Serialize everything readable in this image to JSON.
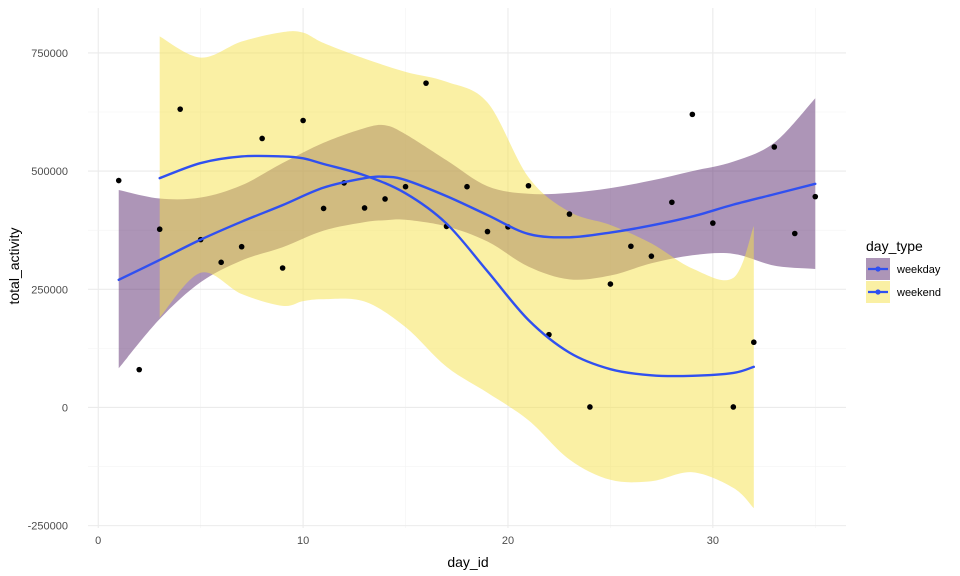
{
  "chart_data": {
    "type": "scatter",
    "xlabel": "day_id",
    "ylabel": "total_activity",
    "xlim": [
      -0.5,
      36.5
    ],
    "ylim": [
      -255000,
      845000
    ],
    "x_ticks": [
      0,
      10,
      20,
      30
    ],
    "x_tick_labels": [
      "0",
      "10",
      "20",
      "30"
    ],
    "y_ticks": [
      -250000,
      0,
      250000,
      500000,
      750000
    ],
    "y_tick_labels": [
      "-250000",
      "0",
      "250000",
      "500000",
      "750000"
    ],
    "grid": true,
    "legend": {
      "title": "day_type",
      "position": "right",
      "entries": [
        "weekday",
        "weekend"
      ]
    },
    "colors": {
      "points": "#000000",
      "trend_line": "#3050f0",
      "weekday_band": "#5b2c6f",
      "weekend_band": "#f6e24a",
      "grid_major": "#ebebeb",
      "grid_minor": "#f3f3f3"
    },
    "points": [
      {
        "x": 1,
        "y": 480000
      },
      {
        "x": 2,
        "y": 80000
      },
      {
        "x": 3,
        "y": 377000
      },
      {
        "x": 4,
        "y": 631000
      },
      {
        "x": 5,
        "y": 355000
      },
      {
        "x": 6,
        "y": 307000
      },
      {
        "x": 7,
        "y": 340000
      },
      {
        "x": 8,
        "y": 569000
      },
      {
        "x": 9,
        "y": 295000
      },
      {
        "x": 10,
        "y": 607000
      },
      {
        "x": 11,
        "y": 421000
      },
      {
        "x": 12,
        "y": 475000
      },
      {
        "x": 13,
        "y": 422000
      },
      {
        "x": 14,
        "y": 441000
      },
      {
        "x": 15,
        "y": 467000
      },
      {
        "x": 16,
        "y": 686000
      },
      {
        "x": 17,
        "y": 383000
      },
      {
        "x": 18,
        "y": 467000
      },
      {
        "x": 19,
        "y": 372000
      },
      {
        "x": 20,
        "y": 382000
      },
      {
        "x": 21,
        "y": 469000
      },
      {
        "x": 22,
        "y": 154000
      },
      {
        "x": 23,
        "y": 409000
      },
      {
        "x": 24,
        "y": 1000
      },
      {
        "x": 25,
        "y": 261000
      },
      {
        "x": 26,
        "y": 341000
      },
      {
        "x": 27,
        "y": 320000
      },
      {
        "x": 28,
        "y": 434000
      },
      {
        "x": 29,
        "y": 620000
      },
      {
        "x": 30,
        "y": 390000
      },
      {
        "x": 31,
        "y": 1000
      },
      {
        "x": 32,
        "y": 138000
      },
      {
        "x": 33,
        "y": 551000
      },
      {
        "x": 34,
        "y": 368000
      },
      {
        "x": 35,
        "y": 446000
      }
    ],
    "series": [
      {
        "name": "weekday",
        "x": [
          1,
          3,
          5,
          7,
          9,
          11,
          13,
          14,
          15,
          17,
          19,
          21,
          23,
          25,
          27,
          29,
          31,
          33,
          35
        ],
        "fit": [
          270000,
          312000,
          355000,
          393000,
          428000,
          465000,
          485000,
          488000,
          481000,
          447000,
          407000,
          367000,
          360000,
          370000,
          385000,
          404000,
          429000,
          451000,
          473000
        ],
        "lower": [
          83000,
          187000,
          265000,
          311000,
          339000,
          374000,
          392000,
          396000,
          397000,
          383000,
          351000,
          298000,
          271000,
          279000,
          305000,
          322000,
          325000,
          300000,
          293000
        ],
        "upper": [
          460000,
          442000,
          444000,
          470000,
          517000,
          560000,
          591000,
          597000,
          578000,
          523000,
          468000,
          452000,
          454000,
          464000,
          480000,
          500000,
          520000,
          560000,
          654000
        ]
      },
      {
        "name": "weekend",
        "x": [
          3,
          5,
          7,
          9,
          10,
          11,
          13,
          15,
          17,
          19,
          21,
          23,
          25,
          27,
          29,
          31,
          32
        ],
        "fit": [
          485000,
          517000,
          531000,
          531000,
          527000,
          515000,
          491000,
          453000,
          389000,
          288000,
          185000,
          116000,
          81000,
          68000,
          67000,
          73000,
          86000
        ],
        "lower": [
          190000,
          285000,
          240000,
          215000,
          225000,
          229000,
          224000,
          170000,
          86000,
          31000,
          -27000,
          -110000,
          -153000,
          -156000,
          -137000,
          -170000,
          -213000
        ],
        "upper": [
          785000,
          740000,
          774000,
          794000,
          793000,
          771000,
          738000,
          710000,
          689000,
          645000,
          487000,
          414000,
          386000,
          347000,
          294000,
          274000,
          384000
        ]
      }
    ]
  }
}
